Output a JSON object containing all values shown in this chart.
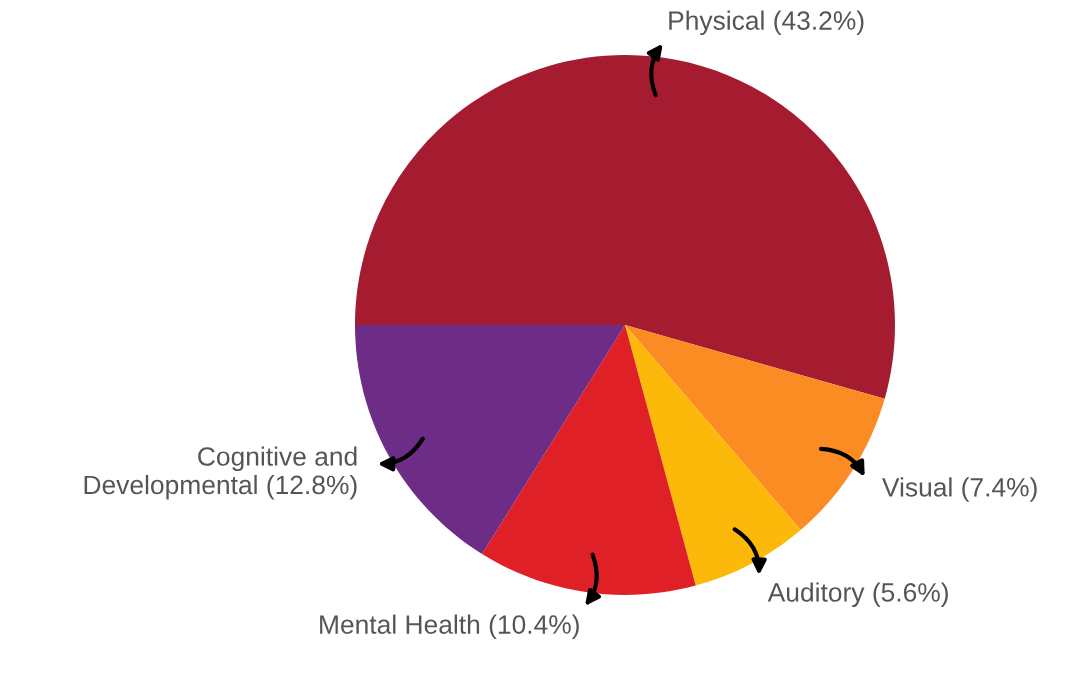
{
  "chart_data": {
    "type": "pie",
    "categories": [
      "Physical (43.2%)",
      "Visual (7.4%)",
      "Auditory (5.6%)",
      "Mental Health (10.4%)",
      "Cognitive and\nDevelopmental (12.8%)"
    ],
    "values": [
      43.2,
      7.4,
      5.6,
      10.4,
      12.8
    ],
    "colors": [
      "#a51c30",
      "#fb8c23",
      "#fdb90a",
      "#e02027",
      "#6d2c86"
    ],
    "legend": false
  }
}
